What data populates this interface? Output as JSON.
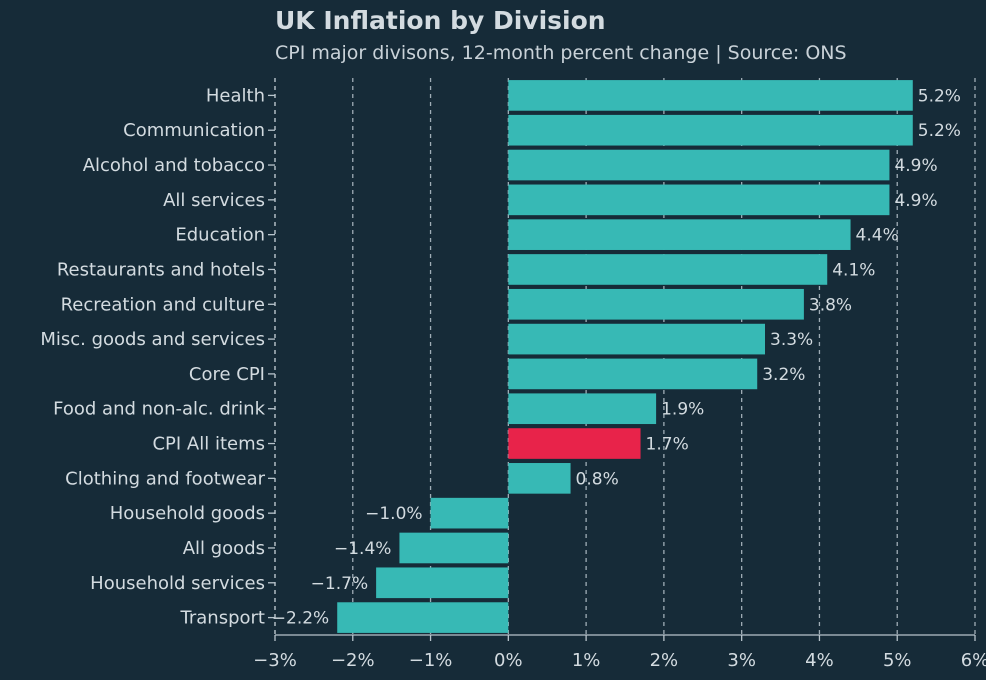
{
  "title": "UK Inflation by Division",
  "subtitle": "CPI major divisons, 12-month percent change | Source: ONS",
  "colors": {
    "background": "#162b38",
    "bar": "#37b9b5",
    "highlight": "#e8234a",
    "text": "#d3dbe0",
    "grid": "#b8c4cc"
  },
  "chart_data": {
    "type": "bar",
    "orientation": "horizontal",
    "title": "UK Inflation by Division",
    "subtitle": "CPI major divisons, 12-month percent change | Source: ONS",
    "categories": [
      "Health",
      "Communication",
      "Alcohol and tobacco",
      "All services",
      "Education",
      "Restaurants and hotels",
      "Recreation and culture",
      "Misc. goods and services",
      "Core CPI",
      "Food and non-alc. drink",
      "CPI All items",
      "Clothing and footwear",
      "Household goods",
      "All goods",
      "Household services",
      "Transport"
    ],
    "values": [
      5.2,
      5.2,
      4.9,
      4.9,
      4.4,
      4.1,
      3.8,
      3.3,
      3.2,
      1.9,
      1.7,
      0.8,
      -1.0,
      -1.4,
      -1.7,
      -2.2
    ],
    "value_labels": [
      "5.2%",
      "5.2%",
      "4.9%",
      "4.9%",
      "4.4%",
      "4.1%",
      "3.8%",
      "3.3%",
      "3.2%",
      "1.9%",
      "1.7%",
      "0.8%",
      "−1.0%",
      "−1.4%",
      "−1.7%",
      "−2.2%"
    ],
    "highlight_category": "CPI All items",
    "xlim": [
      -3,
      6
    ],
    "xticks": [
      -3,
      -2,
      -1,
      0,
      1,
      2,
      3,
      4,
      5,
      6
    ],
    "xtick_labels": [
      "−3%",
      "−2%",
      "−1%",
      "0%",
      "1%",
      "2%",
      "3%",
      "4%",
      "5%",
      "6%"
    ],
    "grid": "vertical dashed",
    "legend": "none"
  }
}
